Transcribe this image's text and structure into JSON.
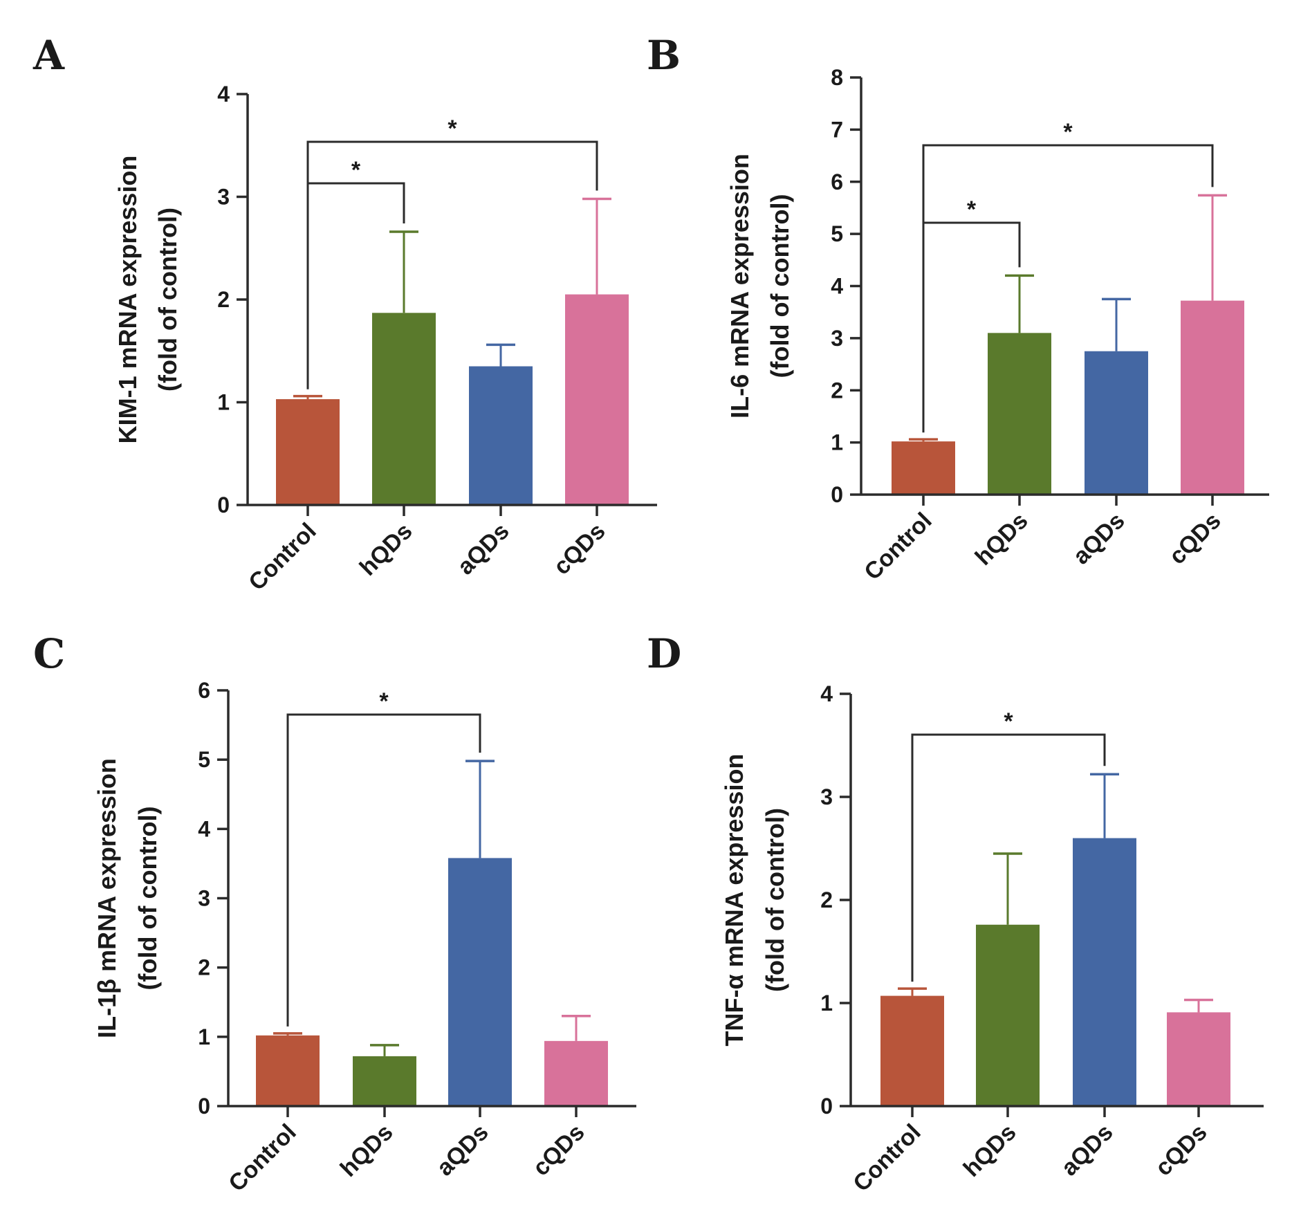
{
  "figure": {
    "colors": {
      "Control": "#b8553a",
      "hQDs": "#5a7a2c",
      "aQDs": "#4467a3",
      "cQDs": "#d8729a",
      "axis": "#2b2b2b"
    }
  },
  "chart_data": [
    {
      "panel": "A",
      "type": "bar",
      "ylabel_line1": "KIM-1 mRNA expression",
      "ylabel_line2": "(fold of control)",
      "categories": [
        "Control",
        "hQDs",
        "aQDs",
        "cQDs"
      ],
      "values": [
        1.03,
        1.87,
        1.35,
        2.05
      ],
      "errors": [
        0.03,
        0.79,
        0.21,
        0.93
      ],
      "ylim": [
        0,
        4
      ],
      "yticks": [
        0,
        1,
        2,
        3,
        4
      ],
      "ytick_labels": [
        "0",
        "1",
        "2",
        "3",
        "4"
      ],
      "significance": [
        {
          "from": 0,
          "to": 1,
          "label": "*"
        },
        {
          "from": 0,
          "to": 3,
          "label": "*"
        }
      ]
    },
    {
      "panel": "B",
      "type": "bar",
      "ylabel_line1": "IL-6 mRNA expression",
      "ylabel_line2": "(fold of control)",
      "categories": [
        "Control",
        "hQDs",
        "aQDs",
        "cQDs"
      ],
      "values": [
        1.02,
        3.1,
        2.75,
        3.72
      ],
      "errors": [
        0.04,
        1.1,
        1.0,
        2.02
      ],
      "ylim": [
        0,
        8
      ],
      "yticks": [
        0,
        1,
        2,
        3,
        4,
        5,
        6,
        7,
        8
      ],
      "ytick_labels": [
        "0",
        "1",
        "2",
        "3",
        "4",
        "5",
        "6",
        "7",
        "8"
      ],
      "significance": [
        {
          "from": 0,
          "to": 1,
          "label": "*"
        },
        {
          "from": 0,
          "to": 3,
          "label": "*"
        }
      ]
    },
    {
      "panel": "C",
      "type": "bar",
      "ylabel_line1": "IL-1β mRNA expression",
      "ylabel_line2": "(fold of control)",
      "categories": [
        "Control",
        "hQDs",
        "aQDs",
        "cQDs"
      ],
      "values": [
        1.02,
        0.72,
        3.58,
        0.94
      ],
      "errors": [
        0.03,
        0.16,
        1.4,
        0.36
      ],
      "ylim": [
        0,
        6
      ],
      "yticks": [
        0,
        1,
        2,
        3,
        4,
        5,
        6
      ],
      "ytick_labels": [
        "0",
        "1",
        "2",
        "3",
        "4",
        "5",
        "6"
      ],
      "significance": [
        {
          "from": 0,
          "to": 2,
          "label": "*"
        }
      ]
    },
    {
      "panel": "D",
      "type": "bar",
      "ylabel_line1": "TNF-α mRNA expression",
      "ylabel_line2": "(fold of control)",
      "categories": [
        "Control",
        "hQDs",
        "aQDs",
        "cQDs"
      ],
      "values": [
        1.07,
        1.76,
        2.6,
        0.91
      ],
      "errors": [
        0.07,
        0.69,
        0.62,
        0.12
      ],
      "ylim": [
        0,
        4
      ],
      "yticks": [
        0,
        1,
        2,
        3,
        4
      ],
      "ytick_labels": [
        "0",
        "1",
        "2",
        "3",
        "4"
      ],
      "significance": [
        {
          "from": 0,
          "to": 2,
          "label": "*"
        }
      ]
    }
  ]
}
